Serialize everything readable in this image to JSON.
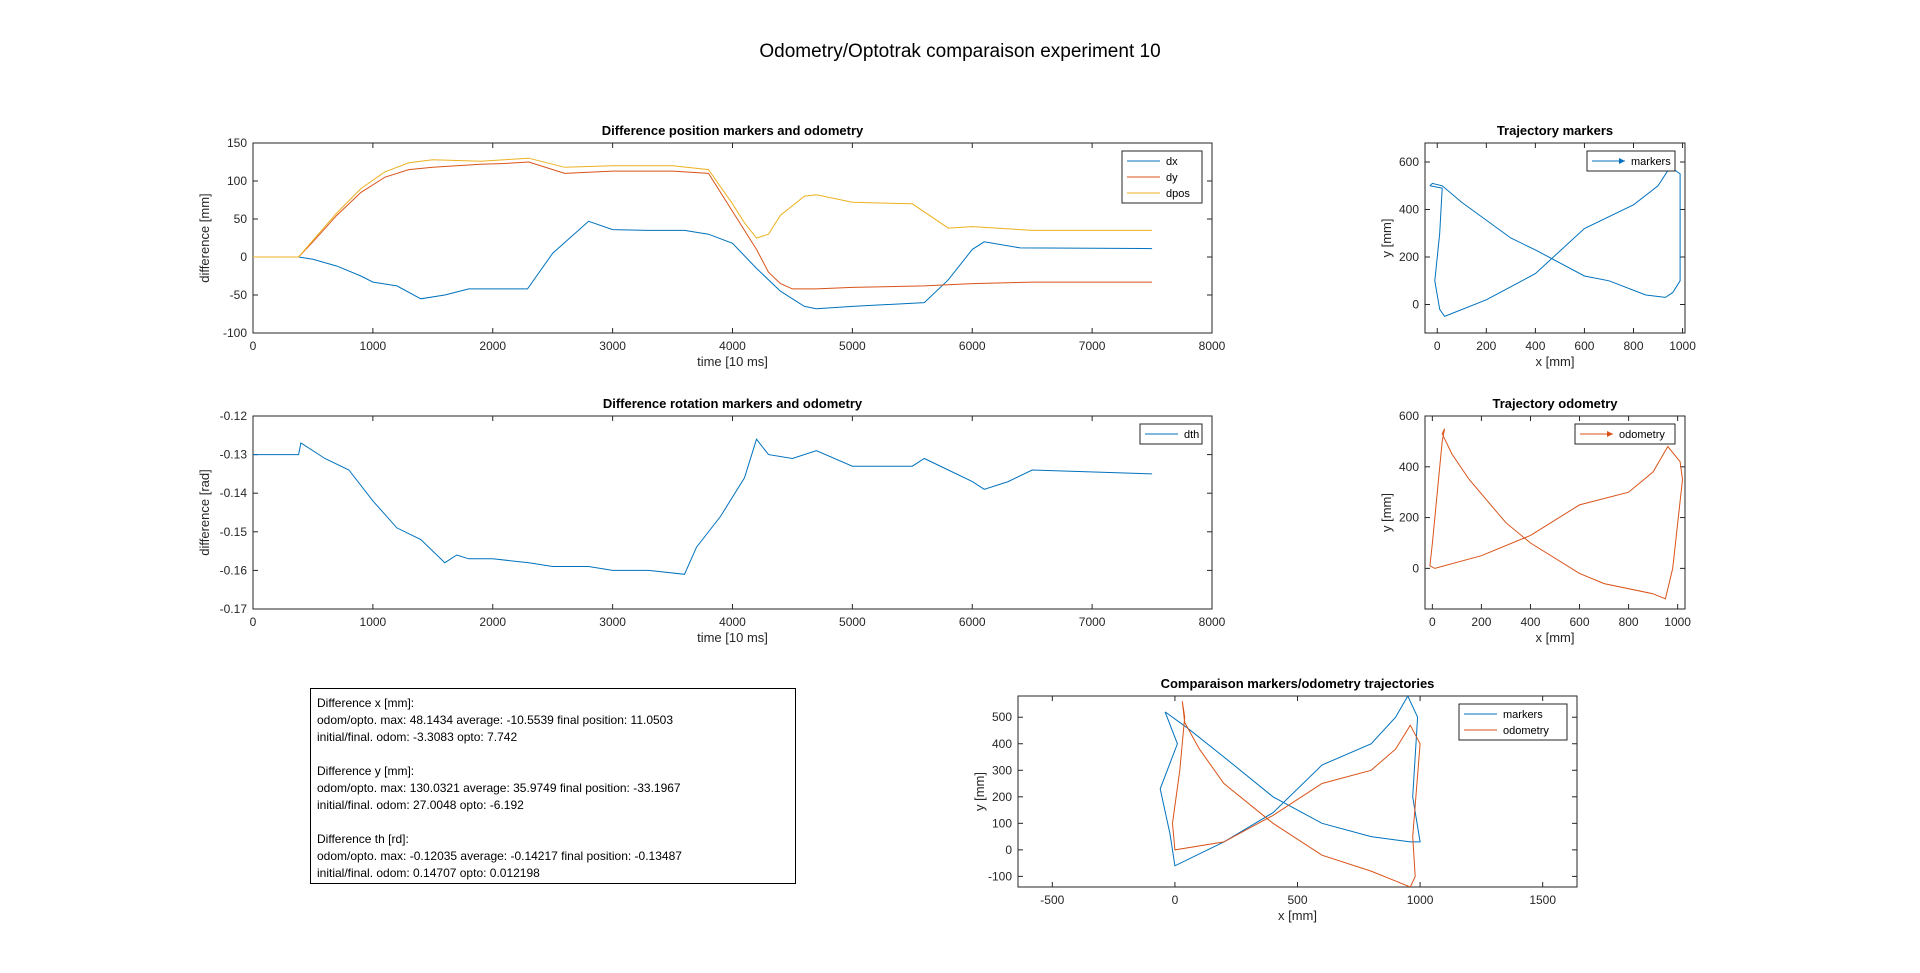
{
  "figure": {
    "title": "Odometry/Optotrak comparaison experiment 10"
  },
  "colors": {
    "blue": "#0072BD",
    "orange": "#D95319",
    "yellow": "#EDB120"
  },
  "chart_data": [
    {
      "id": "pos",
      "type": "line",
      "title": "Difference position markers and odometry",
      "xlabel": "time [10 ms]",
      "ylabel": "difference [mm]",
      "xlim": [
        0,
        8000
      ],
      "ylim": [
        -100,
        150
      ],
      "xticks": [
        0,
        1000,
        2000,
        3000,
        4000,
        5000,
        6000,
        7000,
        8000
      ],
      "yticks": [
        -100,
        -50,
        0,
        50,
        100,
        150
      ],
      "legend": "top-right",
      "series": [
        {
          "name": "dx",
          "color": "#0072BD",
          "x": [
            0,
            380,
            500,
            700,
            900,
            1000,
            1200,
            1400,
            1600,
            1800,
            2000,
            2290,
            2500,
            2800,
            3000,
            3300,
            3600,
            3800,
            4000,
            4200,
            4400,
            4600,
            4700,
            5000,
            5600,
            5800,
            6000,
            6100,
            6400,
            7500
          ],
          "y": [
            0,
            0,
            -3,
            -12,
            -25,
            -33,
            -38,
            -55,
            -50,
            -42,
            -42,
            -42,
            5,
            47,
            36,
            35,
            35,
            30,
            18,
            -15,
            -45,
            -65,
            -68,
            -65,
            -60,
            -30,
            10,
            20,
            12,
            11
          ]
        },
        {
          "name": "dy",
          "color": "#D95319",
          "x": [
            0,
            380,
            500,
            700,
            900,
            1100,
            1300,
            1500,
            1700,
            1900,
            2100,
            2300,
            2600,
            3000,
            3500,
            3800,
            4000,
            4100,
            4200,
            4300,
            4400,
            4500,
            4700,
            5000,
            5600,
            6000,
            6500,
            7500
          ],
          "y": [
            0,
            0,
            20,
            55,
            85,
            105,
            115,
            118,
            120,
            122,
            123,
            125,
            110,
            113,
            113,
            110,
            60,
            35,
            10,
            -20,
            -35,
            -42,
            -42,
            -40,
            -38,
            -35,
            -33,
            -33
          ]
        },
        {
          "name": "dpos",
          "color": "#EDB120",
          "x": [
            0,
            380,
            500,
            700,
            900,
            1100,
            1300,
            1500,
            1700,
            1900,
            2100,
            2300,
            2600,
            3000,
            3500,
            3800,
            4000,
            4100,
            4200,
            4300,
            4400,
            4600,
            4700,
            5000,
            5500,
            5800,
            6000,
            6500,
            7500
          ],
          "y": [
            0,
            0,
            22,
            58,
            90,
            112,
            124,
            128,
            127,
            126,
            128,
            130,
            118,
            120,
            120,
            115,
            70,
            45,
            25,
            30,
            55,
            80,
            82,
            72,
            70,
            38,
            40,
            35,
            35
          ]
        }
      ]
    },
    {
      "id": "rot",
      "type": "line",
      "title": "Difference rotation markers and odometry",
      "xlabel": "time [10 ms]",
      "ylabel": "difference [rad]",
      "xlim": [
        0,
        8000
      ],
      "ylim": [
        -0.17,
        -0.12
      ],
      "xticks": [
        0,
        1000,
        2000,
        3000,
        4000,
        5000,
        6000,
        7000,
        8000
      ],
      "yticks": [
        -0.17,
        -0.16,
        -0.15,
        -0.14,
        -0.13,
        -0.12
      ],
      "legend": "top-right",
      "series": [
        {
          "name": "dth",
          "color": "#0072BD",
          "x": [
            0,
            380,
            400,
            600,
            800,
            1000,
            1200,
            1400,
            1600,
            1700,
            1800,
            2000,
            2300,
            2500,
            2800,
            3000,
            3300,
            3600,
            3700,
            3900,
            4100,
            4200,
            4300,
            4500,
            4700,
            5000,
            5500,
            5600,
            5800,
            6000,
            6100,
            6300,
            6500,
            7500
          ],
          "y": [
            -0.13,
            -0.13,
            -0.127,
            -0.131,
            -0.134,
            -0.142,
            -0.149,
            -0.152,
            -0.158,
            -0.156,
            -0.157,
            -0.157,
            -0.158,
            -0.159,
            -0.159,
            -0.16,
            -0.16,
            -0.161,
            -0.154,
            -0.146,
            -0.136,
            -0.126,
            -0.13,
            -0.131,
            -0.129,
            -0.133,
            -0.133,
            -0.131,
            -0.134,
            -0.137,
            -0.139,
            -0.137,
            -0.134,
            -0.135
          ]
        }
      ]
    },
    {
      "id": "trajm",
      "type": "line",
      "title": "Trajectory markers",
      "xlabel": "x [mm]",
      "ylabel": "y [mm]",
      "xlim": [
        -50,
        1010
      ],
      "ylim": [
        -120,
        680
      ],
      "xticks": [
        0,
        200,
        400,
        600,
        800,
        1000
      ],
      "yticks": [
        0,
        200,
        400,
        600
      ],
      "legend": "top-right",
      "series": [
        {
          "name": "markers",
          "color": "#0072BD",
          "x": [
            -30,
            20,
            10,
            -10,
            10,
            30,
            200,
            400,
            600,
            800,
            900,
            950,
            990,
            990,
            960,
            930,
            850,
            700,
            600,
            400,
            300,
            100,
            20,
            -20,
            -30
          ],
          "y": [
            500,
            490,
            300,
            100,
            -20,
            -50,
            20,
            130,
            320,
            420,
            500,
            580,
            550,
            100,
            50,
            30,
            40,
            100,
            120,
            230,
            280,
            430,
            500,
            510,
            500
          ]
        }
      ]
    },
    {
      "id": "trajo",
      "type": "line",
      "title": "Trajectory odometry",
      "xlabel": "x [mm]",
      "ylabel": "y [mm]",
      "xlim": [
        -30,
        1030
      ],
      "ylim": [
        -160,
        600
      ],
      "xticks": [
        0,
        200,
        400,
        600,
        800,
        1000
      ],
      "yticks": [
        0,
        200,
        400,
        600
      ],
      "legend": "top-right",
      "series": [
        {
          "name": "odometry",
          "color": "#D95319",
          "x": [
            50,
            40,
            20,
            0,
            -10,
            10,
            200,
            400,
            600,
            800,
            900,
            960,
            1010,
            1020,
            980,
            950,
            900,
            700,
            600,
            400,
            300,
            150,
            80,
            40,
            50
          ],
          "y": [
            550,
            500,
            300,
            100,
            10,
            0,
            50,
            130,
            250,
            300,
            380,
            480,
            420,
            350,
            0,
            -120,
            -100,
            -60,
            -20,
            100,
            180,
            350,
            450,
            530,
            550
          ]
        }
      ]
    },
    {
      "id": "cmp",
      "type": "line",
      "title": "Comparaison markers/odometry trajectories",
      "xlabel": "x [mm]",
      "ylabel": "y [mm]",
      "xlim": [
        -640,
        1640
      ],
      "ylim": [
        -140,
        580
      ],
      "xticks": [
        -500,
        0,
        500,
        1000,
        1500
      ],
      "yticks": [
        -100,
        0,
        100,
        200,
        300,
        400,
        500
      ],
      "legend": "top-right",
      "series": [
        {
          "name": "markers",
          "color": "#0072BD",
          "x": [
            -40,
            10,
            -60,
            -20,
            0,
            200,
            400,
            600,
            800,
            900,
            950,
            990,
            970,
            1000,
            960,
            800,
            600,
            400,
            200,
            50,
            -40
          ],
          "y": [
            520,
            400,
            230,
            60,
            -60,
            30,
            140,
            320,
            400,
            500,
            580,
            500,
            200,
            30,
            30,
            50,
            100,
            200,
            350,
            460,
            520
          ]
        },
        {
          "name": "odometry",
          "color": "#D95319",
          "x": [
            30,
            40,
            20,
            -10,
            0,
            200,
            400,
            600,
            800,
            900,
            960,
            1000,
            970,
            980,
            960,
            800,
            600,
            400,
            200,
            100,
            40,
            30
          ],
          "y": [
            560,
            500,
            300,
            100,
            0,
            30,
            130,
            250,
            300,
            380,
            470,
            400,
            50,
            -100,
            -140,
            -80,
            -20,
            100,
            250,
            380,
            480,
            560
          ]
        }
      ]
    }
  ],
  "stats_box": {
    "lines": [
      "Difference x [mm]:",
      "odom/opto.  max: 48.1434 average: -10.5539 final position: 11.0503",
      "initial/final. odom: -3.3083 opto: 7.742",
      "",
      "Difference y [mm]:",
      "odom/opto.  max: 130.0321 average: 35.9749 final position: -33.1967",
      "initial/final. odom: 27.0048 opto: -6.192",
      "",
      "Difference th [rd]:",
      "odom/opto.  max: -0.12035 average: -0.14217 final position: -0.13487",
      "initial/final. odom: 0.14707 opto: 0.012198"
    ]
  }
}
